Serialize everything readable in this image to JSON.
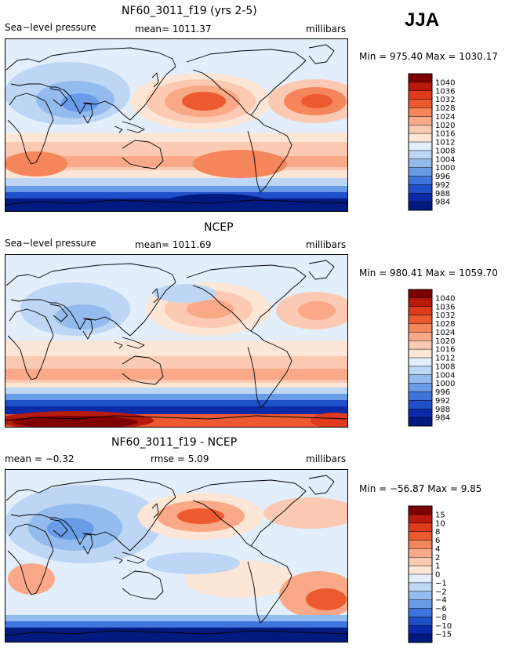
{
  "season": "JJA",
  "chart_data": [
    {
      "type": "heatmap",
      "title": "NF60_3011_f19 (yrs 2-5)",
      "left_label": "Sea−level pressure",
      "center_label": "mean= 1011.37",
      "units": "millibars",
      "minmax": "Min = 975.40 Max = 1030.17",
      "colorbar_levels": [
        "1040",
        "1036",
        "1032",
        "1028",
        "1024",
        "1020",
        "1016",
        "1012",
        "1008",
        "1004",
        "1000",
        "996",
        "992",
        "988",
        "984"
      ],
      "colorbar_colors": [
        "#7f0000",
        "#b81a0c",
        "#dd3b1c",
        "#ee5a2f",
        "#f5855a",
        "#f9a987",
        "#fccab2",
        "#fde6d6",
        "#e2eefb",
        "#bdd6f5",
        "#93bbee",
        "#6a9be6",
        "#3f74dd",
        "#1f4fc9",
        "#0b2aa6",
        "#001a80"
      ]
    },
    {
      "type": "heatmap",
      "title": "NCEP",
      "left_label": "Sea−level pressure",
      "center_label": "mean= 1011.69",
      "units": "millibars",
      "minmax": "Min = 980.41 Max = 1059.70",
      "colorbar_levels": [
        "1040",
        "1036",
        "1032",
        "1028",
        "1024",
        "1020",
        "1016",
        "1012",
        "1008",
        "1004",
        "1000",
        "996",
        "992",
        "988",
        "984"
      ],
      "colorbar_colors": [
        "#7f0000",
        "#b81a0c",
        "#dd3b1c",
        "#ee5a2f",
        "#f5855a",
        "#f9a987",
        "#fccab2",
        "#fde6d6",
        "#e2eefb",
        "#bdd6f5",
        "#93bbee",
        "#6a9be6",
        "#3f74dd",
        "#1f4fc9",
        "#0b2aa6",
        "#001a80"
      ]
    },
    {
      "type": "heatmap",
      "title": "NF60_3011_f19 - NCEP",
      "left_label": "mean =   −0.32",
      "center_label": "rmse =     5.09",
      "units": "millibars",
      "minmax": "Min = −56.87 Max =    9.85",
      "colorbar_levels": [
        "15",
        "10",
        "8",
        "6",
        "4",
        "2",
        "1",
        "0",
        "−1",
        "−2",
        "−4",
        "−6",
        "−8",
        "−10",
        "−15"
      ],
      "colorbar_colors": [
        "#7f0000",
        "#b81a0c",
        "#dd3b1c",
        "#ee5a2f",
        "#f5855a",
        "#f9a987",
        "#fccab2",
        "#fde6d6",
        "#e2eefb",
        "#bdd6f5",
        "#93bbee",
        "#6a9be6",
        "#3f74dd",
        "#1f4fc9",
        "#0b2aa6",
        "#001a80"
      ]
    }
  ]
}
